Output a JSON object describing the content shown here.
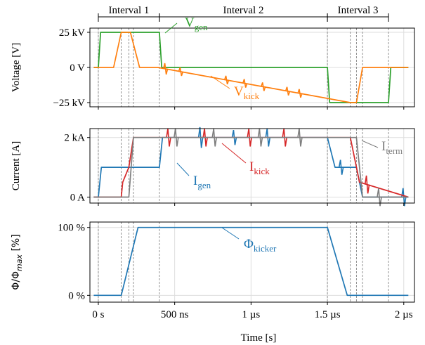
{
  "chart_data": {
    "type": "line",
    "xlabel": "Time [s]",
    "xticks": [
      {
        "value": 0,
        "label": "0 s"
      },
      {
        "value": 500,
        "label": "500 ns"
      },
      {
        "value": 1000,
        "label": "1 µs"
      },
      {
        "value": 1500,
        "label": "1.5 µs"
      },
      {
        "value": 2000,
        "label": "2 µs"
      }
    ],
    "xlim": [
      -55,
      2070
    ],
    "intervals": [
      {
        "label": "Interval 1",
        "start": 0,
        "end": 400
      },
      {
        "label": "Interval 2",
        "start": 400,
        "end": 1500
      },
      {
        "label": "Interval 3",
        "start": 1500,
        "end": 1900
      }
    ],
    "event_lines": [
      0,
      150,
      200,
      230,
      400,
      1500,
      1650,
      1690,
      1730,
      1900
    ],
    "colors": {
      "blue": "#1f77b4",
      "orange": "#ff7f0e",
      "green": "#2ca02c",
      "red": "#d62728",
      "gray": "#7f7f7f"
    },
    "panels": [
      {
        "ylabel": "Voltage [V]",
        "ylim": [
          -28,
          28
        ],
        "yticks": [
          {
            "value": 25,
            "label": "25 kV"
          },
          {
            "value": 0,
            "label": "0 V"
          },
          {
            "value": -25,
            "label": "−25 kV"
          }
        ],
        "series": [
          {
            "label_main": "V",
            "label_sub": "gen",
            "color": "#2ca02c",
            "x": [
              -30,
              0,
              15,
              400,
              415,
              1500,
              1515,
              1900,
              1915,
              2030
            ],
            "y": [
              0,
              0,
              25,
              25,
              0,
              0,
              -25,
              -25,
              0,
              0
            ]
          },
          {
            "label_main": "V",
            "label_sub": "kick",
            "color": "#ff7f0e",
            "x": [
              -30,
              100,
              150,
              210,
              270,
              390,
              1650,
              1690,
              1730,
              1790,
              2030
            ],
            "y": [
              0,
              0,
              25,
              25,
              0,
              0,
              -25,
              -25,
              0,
              0,
              0
            ],
            "spikes": [
              [
                440,
                4
              ],
              [
                540,
                3
              ],
              [
                840,
                3
              ],
              [
                960,
                3
              ],
              [
                1080,
                3
              ],
              [
                1240,
                3
              ],
              [
                1320,
                3
              ]
            ]
          }
        ]
      },
      {
        "ylabel": "Current [A]",
        "ylim": [
          -0.2,
          2.3
        ],
        "yticks": [
          {
            "value": 2,
            "label": "2 kA"
          },
          {
            "value": 0,
            "label": "0 A"
          }
        ],
        "series": [
          {
            "label_main": "I",
            "label_sub": "gen",
            "color": "#1f77b4",
            "x": [
              -30,
              0,
              20,
              400,
              420,
              1500,
              1550,
              1690,
              1730,
              2030
            ],
            "y": [
              0,
              0,
              1,
              1,
              2,
              2,
              1,
              1,
              0,
              0
            ],
            "spikes": [
              [
                670,
                0.35
              ],
              [
                890,
                0.25
              ],
              [
                1110,
                0.3
              ],
              [
                1590,
                0.25
              ],
              [
                2000,
                0.3
              ]
            ]
          },
          {
            "label_main": "I",
            "label_sub": "kick",
            "color": "#d62728",
            "x": [
              -30,
              150,
              160,
              200,
              230,
              1650,
              1690,
              1710,
              2030
            ],
            "y": [
              0,
              0,
              0.5,
              1,
              2,
              2,
              1,
              0.5,
              0
            ],
            "spikes": [
              [
                460,
                0.3
              ],
              [
                700,
                0.3
              ],
              [
                990,
                0.3
              ],
              [
                1220,
                0.3
              ],
              [
                1760,
                0.3
              ]
            ]
          },
          {
            "label_main": "I",
            "label_sub": "term",
            "color": "#7f7f7f",
            "x": [
              -30,
              200,
              230,
              1690,
              1730,
              2030
            ],
            "y": [
              0,
              0,
              2,
              2,
              0,
              0
            ],
            "spikes": [
              [
                510,
                0.3
              ],
              [
                760,
                0.3
              ],
              [
                1060,
                0.3
              ],
              [
                1320,
                0.3
              ],
              [
                1840,
                0.3
              ]
            ]
          }
        ]
      },
      {
        "ylabel": "Φ/Φ",
        "ylabel_sub": "max",
        "ylabel_unit": " [%]",
        "ylim": [
          -10,
          108
        ],
        "yticks": [
          {
            "value": 100,
            "label": "100 %"
          },
          {
            "value": 0,
            "label": "0 %"
          }
        ],
        "series": [
          {
            "label_main": "Φ",
            "label_sub": "kicker",
            "color": "#1f77b4",
            "x": [
              -30,
              100,
              150,
              260,
              1500,
              1630,
              1690,
              2030
            ],
            "y": [
              0,
              0,
              0,
              100,
              100,
              0,
              0,
              0
            ]
          }
        ]
      }
    ]
  }
}
